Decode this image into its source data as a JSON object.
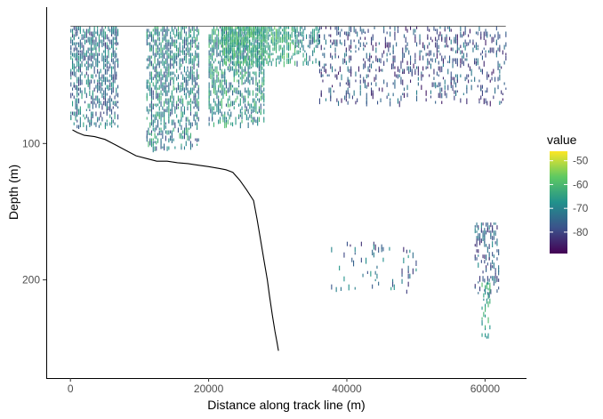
{
  "chart_data": {
    "type": "heatmap",
    "title": "",
    "xlabel": "Distance along track line (m)",
    "ylabel": "Depth (m)",
    "xlim": [
      -3500,
      66000
    ],
    "ylim": [
      272,
      0
    ],
    "y_reversed": true,
    "grid": false,
    "x_ticks": [
      0,
      20000,
      40000,
      60000
    ],
    "x_tick_labels": [
      "0",
      "20000",
      "40000",
      "60000"
    ],
    "y_ticks": [
      100,
      200
    ],
    "y_tick_labels": [
      "100",
      "200"
    ],
    "legend": {
      "title": "value",
      "position": "right",
      "ticks": [
        -50,
        -60,
        -70,
        -80
      ],
      "tick_labels": [
        "-50",
        "-60",
        "-70",
        "-80"
      ],
      "range": [
        -89,
        -46
      ],
      "colors": [
        "#440154",
        "#3b528b",
        "#21918c",
        "#5ec962",
        "#fde725"
      ]
    },
    "colors": {
      "bottom_line": "#000000",
      "axis": "#000000"
    },
    "seabed_line": {
      "name": "",
      "x": [
        300,
        1000,
        2000,
        3500,
        5000,
        6500,
        8000,
        9500,
        11000,
        12500,
        14000,
        15500,
        17000,
        18500,
        20000,
        21500,
        22500,
        23500,
        24500,
        25500,
        26500,
        27000,
        27500,
        28000,
        28500,
        28800,
        29200,
        29600,
        29900,
        30100
      ],
      "y": [
        90,
        92,
        94,
        95,
        97,
        101,
        105,
        109,
        111,
        113,
        113,
        114,
        115,
        116,
        117,
        118,
        119,
        121,
        127,
        134,
        142,
        155,
        170,
        185,
        200,
        212,
        225,
        238,
        246,
        252
      ]
    },
    "echo_regions": [
      {
        "x_range": [
          0,
          7000
        ],
        "depth_range": [
          14,
          88
        ],
        "density": 0.55,
        "value_range": [
          -82,
          -64
        ]
      },
      {
        "x_range": [
          11000,
          18500
        ],
        "depth_range": [
          14,
          104
        ],
        "density": 0.55,
        "value_range": [
          -80,
          -60
        ]
      },
      {
        "x_range": [
          20000,
          28000
        ],
        "depth_range": [
          14,
          85
        ],
        "density": 0.6,
        "value_range": [
          -78,
          -58
        ]
      },
      {
        "x_range": [
          22000,
          32500
        ],
        "depth_range": [
          14,
          40
        ],
        "density": 0.75,
        "value_range": [
          -70,
          -56
        ]
      },
      {
        "x_range": [
          32500,
          36000
        ],
        "depth_range": [
          14,
          40
        ],
        "density": 0.45,
        "value_range": [
          -78,
          -62
        ]
      },
      {
        "x_range": [
          36000,
          63000
        ],
        "depth_range": [
          14,
          70
        ],
        "density": 0.22,
        "value_range": [
          -86,
          -70
        ]
      },
      {
        "x_range": [
          37500,
          50000
        ],
        "depth_range": [
          172,
          208
        ],
        "density": 0.07,
        "value_range": [
          -84,
          -66
        ]
      },
      {
        "x_range": [
          58500,
          62000
        ],
        "depth_range": [
          158,
          210
        ],
        "density": 0.35,
        "value_range": [
          -84,
          -68
        ]
      },
      {
        "x_range": [
          59500,
          60800
        ],
        "depth_range": [
          200,
          243
        ],
        "density": 0.3,
        "value_range": [
          -70,
          -58
        ]
      }
    ]
  }
}
